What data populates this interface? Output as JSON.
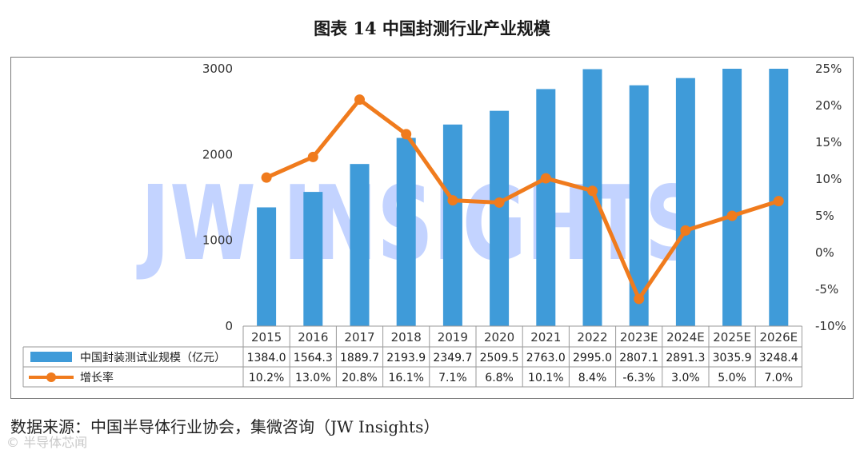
{
  "title": "图表 14 中国封测行业产业规模",
  "source_text": "数据来源：中国半导体行业协会，集微咨询（JW Insights）",
  "watermark": "JW INSIGHTS",
  "corner_watermark": "© 半导体芯闻",
  "colors": {
    "bar": "#3f9bd9",
    "line": "#f07b1d",
    "watermark": "#b9ccff"
  },
  "chart_data": {
    "type": "bar+line",
    "title": "图表 14 中国封测行业产业规模",
    "categories": [
      "2015",
      "2016",
      "2017",
      "2018",
      "2019",
      "2020",
      "2021",
      "2022",
      "2023E",
      "2024E",
      "2025E",
      "2026E"
    ],
    "series": [
      {
        "name": "中国封装测试业规模（亿元）",
        "type": "bar",
        "axis": "left",
        "values": [
          1384.0,
          1564.3,
          1889.7,
          2193.9,
          2349.7,
          2509.5,
          2763.0,
          2995.0,
          2807.1,
          2891.3,
          3035.9,
          3248.4
        ],
        "labels": [
          "1384.0",
          "1564.3",
          "1889.7",
          "2193.9",
          "2349.7",
          "2509.5",
          "2763.0",
          "2995.0",
          "2807.1",
          "2891.3",
          "3035.9",
          "3248.4"
        ]
      },
      {
        "name": "增长率",
        "type": "line",
        "axis": "right",
        "values": [
          10.2,
          13.0,
          20.8,
          16.1,
          7.1,
          6.8,
          10.1,
          8.4,
          -6.3,
          3.0,
          5.0,
          7.0
        ],
        "labels": [
          "10.2%",
          "13.0%",
          "20.8%",
          "16.1%",
          "7.1%",
          "6.8%",
          "10.1%",
          "8.4%",
          "-6.3%",
          "3.0%",
          "5.0%",
          "7.0%"
        ]
      }
    ],
    "y_left": {
      "ylim": [
        0,
        3000
      ],
      "ticks": [
        0,
        1000,
        2000,
        3000
      ],
      "tick_labels": [
        "0",
        "1000",
        "2000",
        "3000"
      ]
    },
    "y_right": {
      "ylim": [
        -10,
        25
      ],
      "ticks": [
        -10,
        -5,
        0,
        5,
        10,
        15,
        20,
        25
      ],
      "tick_labels": [
        "-10%",
        "-5%",
        "0%",
        "5%",
        "10%",
        "15%",
        "20%",
        "25%"
      ]
    },
    "legend": "bottom-data-table"
  }
}
